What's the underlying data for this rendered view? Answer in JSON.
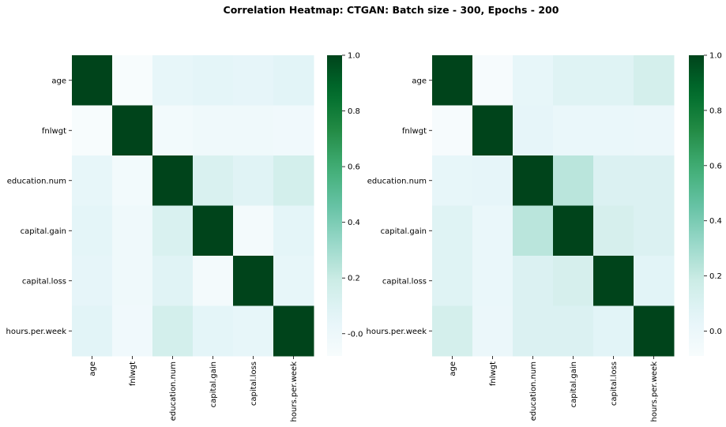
{
  "title": "Correlation Heatmap: CTGAN: Batch size - 300, Epochs - 200",
  "chart_data": [
    {
      "type": "heatmap",
      "title": "",
      "xlabel": "",
      "ylabel": "",
      "x": [
        "age",
        "fnlwgt",
        "education.num",
        "capital.gain",
        "capital.loss",
        "hours.per.week"
      ],
      "y": [
        "age",
        "fnlwgt",
        "education.num",
        "capital.gain",
        "capital.loss",
        "hours.per.week"
      ],
      "values": [
        [
          1.0,
          -0.08,
          0.04,
          0.06,
          0.05,
          0.07
        ],
        [
          -0.08,
          1.0,
          -0.04,
          -0.02,
          -0.02,
          -0.03
        ],
        [
          0.04,
          -0.04,
          1.0,
          0.12,
          0.08,
          0.15
        ],
        [
          0.06,
          -0.02,
          0.12,
          1.0,
          -0.05,
          0.06
        ],
        [
          0.05,
          -0.02,
          0.08,
          -0.05,
          1.0,
          0.04
        ],
        [
          0.07,
          -0.03,
          0.15,
          0.06,
          0.04,
          1.0
        ]
      ],
      "colorbar": {
        "vmin": -0.08,
        "vmax": 1.0,
        "ticks": [
          "-0.0",
          "0.2",
          "0.4",
          "0.6",
          "0.8",
          "1.0"
        ],
        "tick_values": [
          0,
          0.2,
          0.4,
          0.6,
          0.8,
          1.0
        ]
      }
    },
    {
      "type": "heatmap",
      "title": "",
      "xlabel": "",
      "ylabel": "",
      "x": [
        "age",
        "fnlwgt",
        "education.num",
        "capital.gain",
        "capital.loss",
        "hours.per.week"
      ],
      "y": [
        "age",
        "fnlwgt",
        "education.num",
        "capital.gain",
        "capital.loss",
        "hours.per.week"
      ],
      "values": [
        [
          1.0,
          -0.08,
          0.03,
          0.08,
          0.08,
          0.14
        ],
        [
          -0.08,
          1.0,
          0.04,
          0.01,
          0.01,
          0.0
        ],
        [
          0.03,
          0.04,
          1.0,
          0.23,
          0.1,
          0.1
        ],
        [
          0.08,
          0.01,
          0.23,
          1.0,
          0.13,
          0.1
        ],
        [
          0.08,
          0.01,
          0.1,
          0.13,
          1.0,
          0.06
        ],
        [
          0.14,
          0.0,
          0.1,
          0.1,
          0.06,
          1.0
        ]
      ],
      "colorbar": {
        "vmin": -0.09,
        "vmax": 1.0,
        "ticks": [
          "0.0",
          "0.2",
          "0.4",
          "0.6",
          "0.8",
          "1.0"
        ],
        "tick_values": [
          0,
          0.2,
          0.4,
          0.6,
          0.8,
          1.0
        ]
      }
    }
  ],
  "colors": {
    "cmap_stops": [
      "#f7fcfd",
      "#e5f5f9",
      "#ccece6",
      "#99d8c9",
      "#66c2a4",
      "#41ae76",
      "#238b45",
      "#006d2c",
      "#00441b"
    ]
  }
}
